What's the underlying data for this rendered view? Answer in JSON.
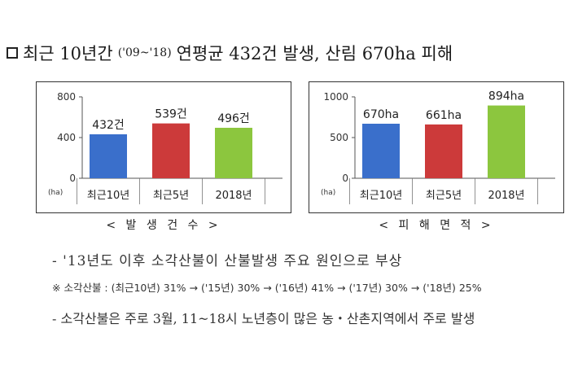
{
  "headline": {
    "prefix": "최근 10년간",
    "period": "('09~'18)",
    "suffix": "연평균 432건 발생, 산림 670ha 피해"
  },
  "chart_data": [
    {
      "type": "bar",
      "categories": [
        "최근10년",
        "최근5년",
        "2018년"
      ],
      "values": [
        432,
        539,
        496
      ],
      "data_labels": [
        "432건",
        "539건",
        "496건"
      ],
      "colors": [
        "#3a6fcb",
        "#cc3a3a",
        "#8cc63e"
      ],
      "ylim": [
        0,
        800
      ],
      "yticks": [
        "0",
        "400",
        "800"
      ],
      "unit": "(ha)",
      "caption": "< 발 생 건 수 >"
    },
    {
      "type": "bar",
      "categories": [
        "최근10년",
        "최근5년",
        "2018년"
      ],
      "values": [
        670,
        661,
        894
      ],
      "data_labels": [
        "670ha",
        "661ha",
        "894ha"
      ],
      "colors": [
        "#3a6fcb",
        "#cc3a3a",
        "#8cc63e"
      ],
      "ylim": [
        0,
        1000
      ],
      "yticks": [
        "0",
        "500",
        "1000"
      ],
      "unit": "(ha)",
      "caption": "< 피 해 면 적 >"
    }
  ],
  "notes": {
    "line1": "- '13년도 이후 소각산불이 산불발생 주요 원인으로 부상",
    "line2": "※ 소각산불 : (최근10년) 31% → ('15년) 30% → ('16년) 41% → ('17년) 30% → ('18년) 25%",
    "line3": "- 소각산불은 주로 3월, 11~18시 노년층이 많은 농・산촌지역에서 주로 발생"
  }
}
